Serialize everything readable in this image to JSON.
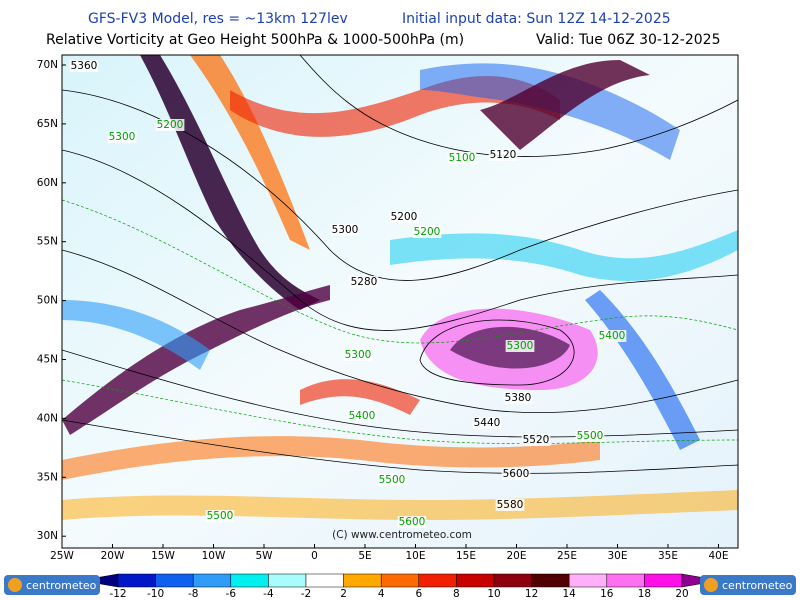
{
  "header": {
    "model": "GFS-FV3 Model, res = ~13km 127lev",
    "init": "Initial input data: Sun 12Z 14-12-2025",
    "field": "Relative Vorticity at Geo Height 500hPa & 1000-500hPa (m)",
    "valid": "Valid: Tue 06Z 30-12-2025"
  },
  "axes": {
    "latitudes": [
      "70N",
      "65N",
      "60N",
      "55N",
      "50N",
      "45N",
      "40N",
      "35N",
      "30N"
    ],
    "longitudes": [
      "25W",
      "20W",
      "15W",
      "10W",
      "5W",
      "0",
      "5E",
      "10E",
      "15E",
      "20E",
      "25E",
      "30E",
      "35E",
      "40E"
    ]
  },
  "contour_labels": [
    "5360",
    "5300",
    "5200",
    "5100",
    "5120",
    "5200",
    "5200",
    "5280",
    "5300",
    "5300",
    "5400",
    "5440",
    "5380",
    "5520",
    "5500",
    "5600",
    "5500",
    "5500",
    "5580",
    "5600",
    "5400",
    "5300"
  ],
  "copyright": "(C) www.centrometeo.com",
  "logo": "centrometeo",
  "colorbar": {
    "ticks": [
      -12,
      -10,
      -8,
      -6,
      -4,
      -2,
      2,
      4,
      6,
      8,
      10,
      12,
      14,
      16,
      18,
      20
    ],
    "colors": [
      "#000080",
      "#0018c8",
      "#1060f0",
      "#2e9cf8",
      "#00f0f0",
      "#a8fcfc",
      "#ffffff",
      "#ffa800",
      "#ff6a00",
      "#f02000",
      "#c80000",
      "#8c0010",
      "#500000",
      "#ffb0f8",
      "#ff70f0",
      "#ff10e8",
      "#900090"
    ]
  }
}
